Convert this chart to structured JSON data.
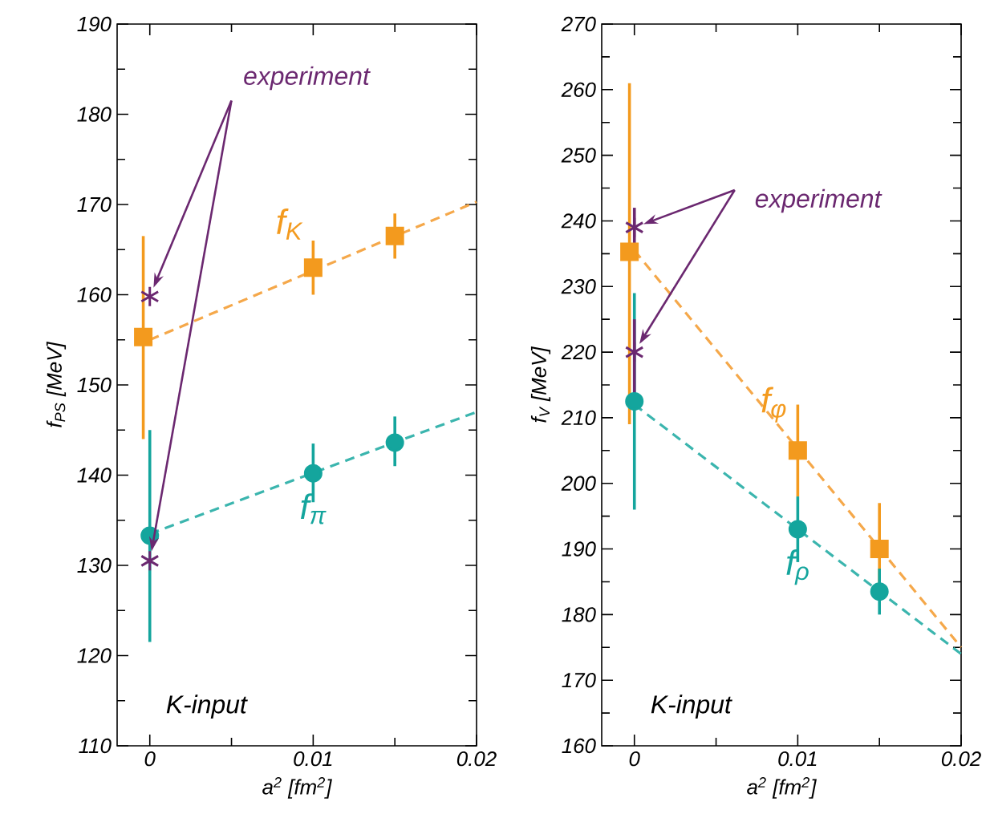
{
  "chart_data": [
    {
      "type": "scatter",
      "xlabel": "a$^{2}$ [fm$^{2}$]",
      "ylabel": "f$_{PS}$ [MeV]",
      "xlim": [
        -0.002,
        0.02
      ],
      "ylim": [
        110,
        190
      ],
      "xticks": [
        0,
        0.01,
        0.02
      ],
      "yticks": [
        110,
        120,
        130,
        140,
        150,
        160,
        170,
        180,
        190
      ],
      "annotations": [
        "experiment",
        "K-input"
      ],
      "series": [
        {
          "type": "line",
          "color": "#f5a84a",
          "line_style": "dashed",
          "x": [
            0,
            0.02
          ],
          "values": [
            155,
            170.3
          ]
        },
        {
          "type": "line",
          "color": "#3bb5ae",
          "line_style": "dashed",
          "x": [
            0,
            0.02
          ],
          "values": [
            133.5,
            147
          ]
        },
        {
          "name": "f$_{K}$",
          "color": "#f39a1e",
          "marker": "square",
          "x": [
            -0.0004,
            0.01,
            0.015
          ],
          "values": [
            155.3,
            163,
            166.5
          ],
          "errors": [
            [
              144,
              166.5
            ],
            [
              160,
              166
            ],
            [
              164,
              169
            ]
          ]
        },
        {
          "name": "f$_{π}$",
          "color": "#14a59d",
          "marker": "circle",
          "x": [
            0,
            0.01,
            0.015
          ],
          "values": [
            133.3,
            140.2,
            143.6
          ],
          "errors": [
            [
              121.5,
              145
            ],
            [
              137,
              143.5
            ],
            [
              141,
              146.5
            ]
          ]
        },
        {
          "color": "#6b2870",
          "marker": "cross",
          "x": [
            0,
            0
          ],
          "values": [
            159.8,
            130.5
          ]
        }
      ]
    },
    {
      "type": "scatter",
      "xlabel": "a$^{2}$ [fm$^{2}$]",
      "ylabel": "f$_{V}$ [MeV]",
      "xlim": [
        -0.002,
        0.02
      ],
      "ylim": [
        160,
        270
      ],
      "xticks": [
        0,
        0.01,
        0.02
      ],
      "yticks": [
        160,
        170,
        180,
        190,
        200,
        210,
        220,
        230,
        240,
        250,
        260,
        270
      ],
      "annotations": [
        "experiment",
        "K-input"
      ],
      "series": [
        {
          "type": "line",
          "color": "#f5a84a",
          "line_style": "dashed",
          "x": [
            0,
            0.02
          ],
          "values": [
            235.5,
            175
          ]
        },
        {
          "type": "line",
          "color": "#3bb5ae",
          "line_style": "dashed",
          "x": [
            0,
            0.02
          ],
          "values": [
            212,
            174
          ]
        },
        {
          "name": "f$_{φ}$",
          "color": "#f39a1e",
          "marker": "square",
          "x": [
            -0.0003,
            0.01,
            0.015
          ],
          "values": [
            235.3,
            205,
            190
          ],
          "errors": [
            [
              209,
              261
            ],
            [
              198,
              212
            ],
            [
              184,
              197
            ]
          ]
        },
        {
          "name": "f$_{ρ}$",
          "color": "#14a59d",
          "marker": "circle",
          "x": [
            0,
            0.01,
            0.015
          ],
          "values": [
            212.5,
            193,
            183.5
          ],
          "errors": [
            [
              196,
              229
            ],
            [
              188,
              198
            ],
            [
              180,
              187
            ]
          ]
        },
        {
          "color": "#6b2870",
          "marker": "cross",
          "x": [
            0,
            0
          ],
          "values": [
            239,
            220
          ],
          "errors": [
            [
              235,
              242
            ],
            [
              213,
              225
            ]
          ]
        }
      ]
    }
  ]
}
